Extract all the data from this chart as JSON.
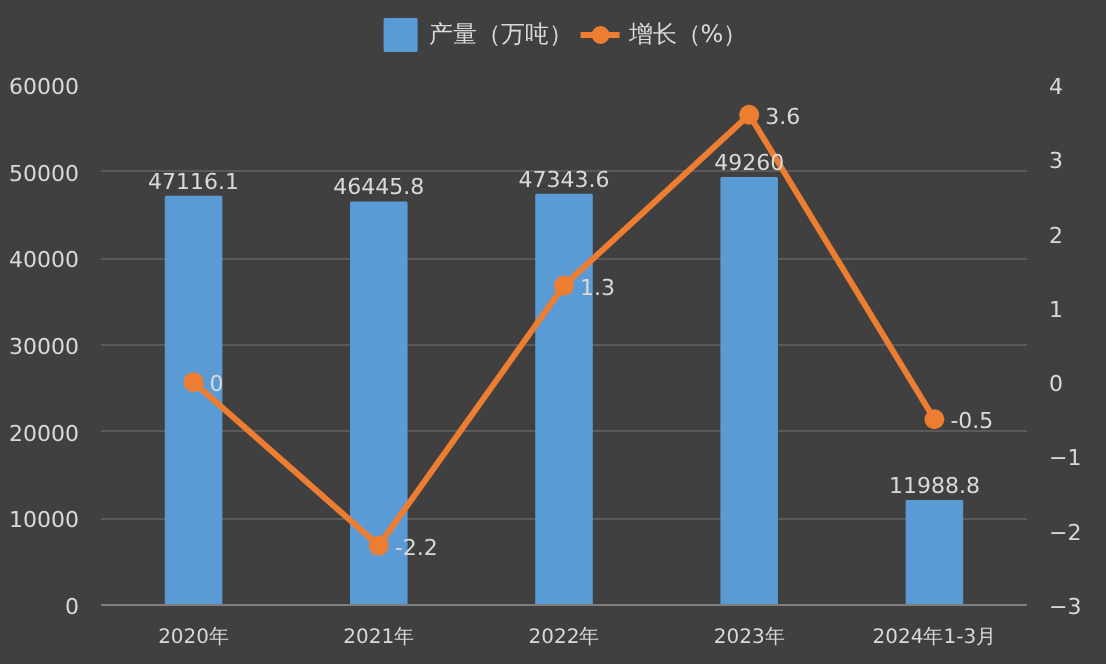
{
  "chart_data": {
    "type": "bar",
    "categories": [
      "2020年",
      "2021年",
      "2022年",
      "2023年",
      "2024年1-3月"
    ],
    "series": [
      {
        "name": "产量（万吨）",
        "color": "#5b9bd5",
        "values": [
          47116.1,
          46445.8,
          47343.6,
          49260,
          11988.8
        ]
      },
      {
        "name": "增长（%）",
        "type": "line",
        "axis": "y2",
        "color": "#ed7d31",
        "values": [
          0,
          -2.2,
          1.3,
          3.6,
          -0.5
        ]
      }
    ],
    "data_labels": true,
    "ylim": [
      0,
      60000
    ],
    "yticks": [
      0,
      10000,
      20000,
      30000,
      40000,
      50000,
      60000
    ],
    "y2lim": [
      -3,
      4
    ],
    "y2ticks": [
      -3,
      -2,
      -1,
      0,
      1,
      2,
      3,
      4
    ],
    "grid": "y",
    "legend": "top",
    "marker": "circle",
    "line_style": "solid"
  }
}
